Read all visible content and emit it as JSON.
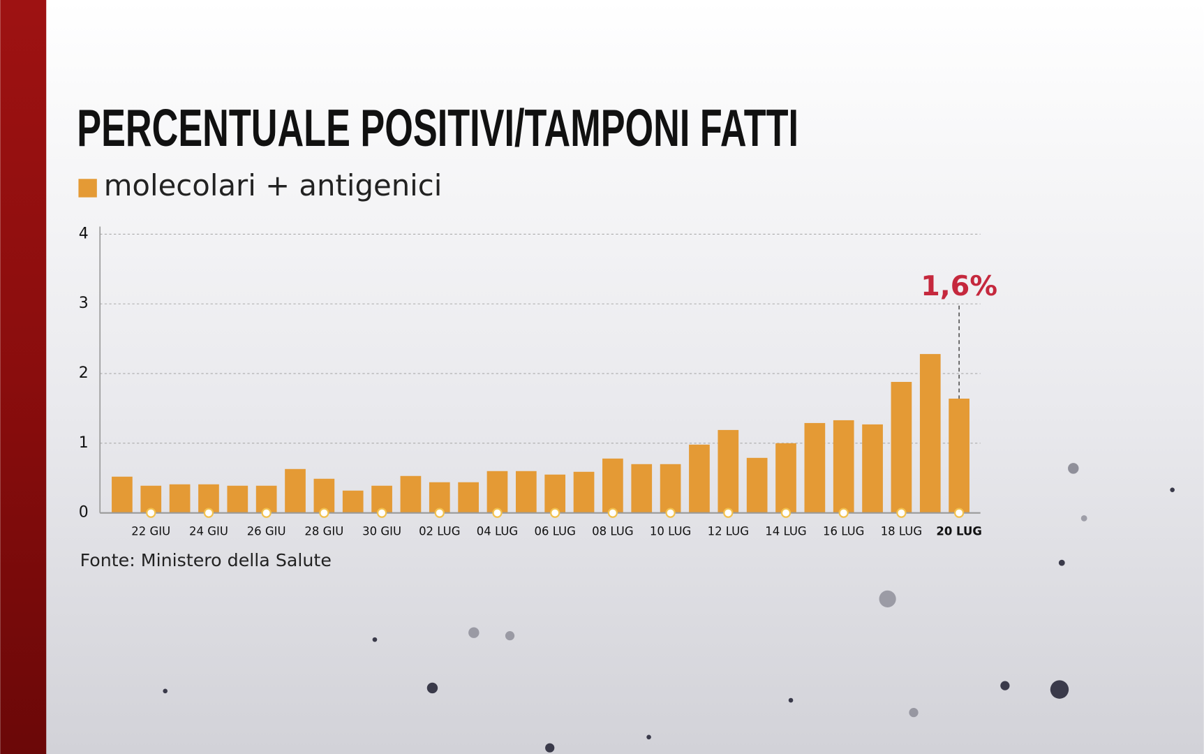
{
  "chart_data": {
    "type": "bar",
    "title": "PERCENTUALE POSITIVI/TAMPONI FATTI",
    "legend_label": "molecolari + antigenici",
    "source": "Fonte: Ministero della Salute",
    "color": "#e49a35",
    "categories": [
      null,
      "22 GIU",
      null,
      "24 GIU",
      null,
      "26 GIU",
      null,
      "28 GIU",
      null,
      "30 GIU",
      null,
      "02 LUG",
      null,
      "04 LUG",
      null,
      "06 LUG",
      null,
      "08 LUG",
      null,
      "10 LUG",
      null,
      "12 LUG",
      null,
      "14 LUG",
      null,
      "16 LUG",
      null,
      "18 LUG",
      null,
      "20 LUG"
    ],
    "values": [
      0.52,
      0.39,
      0.41,
      0.41,
      0.39,
      0.39,
      0.63,
      0.49,
      0.32,
      0.39,
      0.53,
      0.44,
      0.44,
      0.6,
      0.6,
      0.55,
      0.59,
      0.78,
      0.7,
      0.7,
      0.98,
      1.19,
      0.79,
      1.0,
      1.29,
      1.33,
      1.27,
      1.88,
      2.28,
      1.64
    ],
    "value_labels": [
      null,
      null,
      null,
      null,
      null,
      null,
      null,
      null,
      null,
      null,
      null,
      null,
      null,
      null,
      null,
      null,
      null,
      null,
      null,
      null,
      null,
      null,
      null,
      null,
      null,
      null,
      null,
      null,
      null,
      "1,6%"
    ],
    "ylim": [
      0,
      4
    ],
    "yticks": [
      0,
      1,
      2,
      3,
      4
    ],
    "grid": true
  }
}
